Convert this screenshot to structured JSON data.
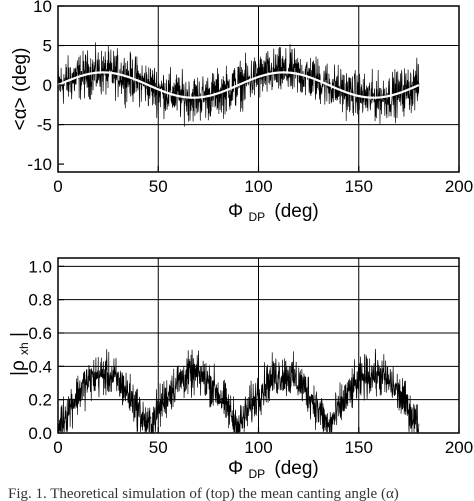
{
  "chart_data": [
    {
      "type": "line",
      "panel": "top",
      "ylabel_text": "<α> (deg)",
      "xlabel_main": "Φ",
      "xlabel_sub": "DP",
      "xlabel_unit": "(deg)",
      "xlim": [
        0,
        200
      ],
      "ylim": [
        -11,
        10
      ],
      "xticks": [
        0,
        50,
        100,
        150,
        200
      ],
      "yticks": [
        -10,
        -5,
        0,
        5,
        10
      ],
      "grid_x": [
        50,
        100,
        150
      ],
      "grid_y": [
        -5,
        5
      ],
      "noise_x_range": [
        0,
        180
      ],
      "series": [
        {
          "style": "noisy",
          "baseline": "sine",
          "amplitude": 1.6,
          "period": 90,
          "phase_deg": 0,
          "spread": 2.3
        },
        {
          "style": "smooth-white",
          "amplitude": 1.6,
          "period": 90,
          "phase_deg": 0
        }
      ]
    },
    {
      "type": "line",
      "panel": "bottom",
      "ylabel_main": "|ρ",
      "ylabel_sub": "xh",
      "ylabel_close": "|",
      "xlabel_main": "Φ",
      "xlabel_sub": "DP",
      "xlabel_unit": "(deg)",
      "xlim": [
        0,
        200
      ],
      "ylim": [
        0,
        1.05
      ],
      "xticks": [
        0,
        50,
        100,
        150,
        200
      ],
      "yticks": [
        0.0,
        0.2,
        0.4,
        0.6,
        0.8,
        1.0
      ],
      "ytick_labels": [
        "0.0",
        "0.2",
        "0.4",
        "0.6",
        "0.8",
        "1.0"
      ],
      "grid_x": [
        50,
        100,
        150
      ],
      "grid_y": [
        0.2,
        0.4,
        0.6,
        0.8,
        1.0
      ],
      "noise_x_range": [
        0,
        180
      ],
      "series": [
        {
          "style": "noisy",
          "baseline": "abs-sine",
          "amplitude": 0.32,
          "period": 90,
          "offset": 0.03,
          "spread": 0.1
        }
      ]
    }
  ],
  "caption": "Fig. 1. Theoretical simulation of (top) the mean canting angle (α)"
}
